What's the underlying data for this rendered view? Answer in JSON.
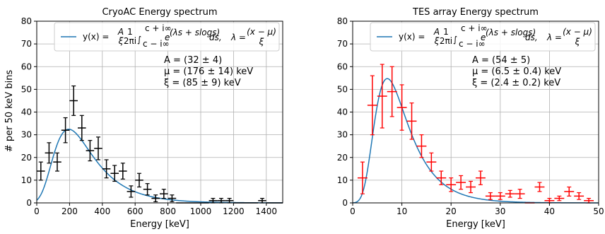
{
  "chart_data": [
    {
      "type": "scatter",
      "title": "CryoAC Energy spectrum",
      "xlabel": "Energy [keV]",
      "ylabel": "# per 50 keV bins",
      "xlim": [
        0,
        1500
      ],
      "ylim": [
        0,
        80
      ],
      "xticks": [
        0,
        200,
        400,
        600,
        800,
        1000,
        1200,
        1400
      ],
      "yticks": [
        0,
        10,
        20,
        30,
        40,
        50,
        60,
        70,
        80
      ],
      "grid": true,
      "legend_position": "top-right",
      "legend": {
        "series_label": "y(x) = ",
        "frac_top": "A",
        "frac_bottom": "ξ",
        "frac2_top": "1",
        "frac2_bottom": "2πi",
        "int_upper": "c + i∞",
        "int_lower": "c − i∞",
        "exp_base": "e",
        "exp_power": "(λs + slogs)",
        "ds": "ds,",
        "lambda_lhs": "λ = ",
        "lambda_top": "(x − μ)",
        "lambda_bottom": "ξ"
      },
      "fit_params": [
        "A = (32 ± 4)",
        "μ = (176 ± 14) keV",
        "ξ = (85 ± 9) keV"
      ],
      "fit": {
        "A": 32,
        "mu": 176,
        "xi": 85
      },
      "points_color": "#000000",
      "line_color": "#1f77b4",
      "points": [
        {
          "x": 25,
          "y": 14,
          "yerr": 4
        },
        {
          "x": 75,
          "y": 22,
          "yerr": 4.5
        },
        {
          "x": 125,
          "y": 18,
          "yerr": 4
        },
        {
          "x": 175,
          "y": 32,
          "yerr": 5.5
        },
        {
          "x": 225,
          "y": 45,
          "yerr": 6.5
        },
        {
          "x": 275,
          "y": 33,
          "yerr": 5.5
        },
        {
          "x": 325,
          "y": 23,
          "yerr": 4.5
        },
        {
          "x": 375,
          "y": 24,
          "yerr": 5
        },
        {
          "x": 425,
          "y": 15,
          "yerr": 4
        },
        {
          "x": 475,
          "y": 13,
          "yerr": 3.5
        },
        {
          "x": 525,
          "y": 14,
          "yerr": 3.5
        },
        {
          "x": 575,
          "y": 5,
          "yerr": 2.5
        },
        {
          "x": 625,
          "y": 10,
          "yerr": 3
        },
        {
          "x": 675,
          "y": 6,
          "yerr": 2.5
        },
        {
          "x": 725,
          "y": 2,
          "yerr": 1.5
        },
        {
          "x": 775,
          "y": 4,
          "yerr": 2
        },
        {
          "x": 825,
          "y": 2,
          "yerr": 1.5
        },
        {
          "x": 875,
          "y": 0,
          "yerr": 0
        },
        {
          "x": 925,
          "y": 0,
          "yerr": 0
        },
        {
          "x": 975,
          "y": 0,
          "yerr": 0
        },
        {
          "x": 1025,
          "y": 0,
          "yerr": 0
        },
        {
          "x": 1075,
          "y": 1,
          "yerr": 1
        },
        {
          "x": 1125,
          "y": 1,
          "yerr": 1
        },
        {
          "x": 1175,
          "y": 1,
          "yerr": 1
        },
        {
          "x": 1225,
          "y": 0,
          "yerr": 0
        },
        {
          "x": 1275,
          "y": 0,
          "yerr": 0
        },
        {
          "x": 1325,
          "y": 0,
          "yerr": 0
        },
        {
          "x": 1375,
          "y": 1,
          "yerr": 1
        },
        {
          "x": 1425,
          "y": 0,
          "yerr": 0
        },
        {
          "x": 1475,
          "y": 0,
          "yerr": 0
        }
      ]
    },
    {
      "type": "scatter",
      "title": "TES array Energy spectrum",
      "xlabel": "Energy [keV]",
      "ylabel": "",
      "xlim": [
        0,
        50
      ],
      "ylim": [
        0,
        80
      ],
      "xticks": [
        0,
        10,
        20,
        30,
        40,
        50
      ],
      "yticks": [
        0,
        10,
        20,
        30,
        40,
        50,
        60,
        70,
        80
      ],
      "grid": true,
      "legend_position": "top-right",
      "legend": {
        "series_label": "y(x) = ",
        "frac_top": "A",
        "frac_bottom": "ξ",
        "frac2_top": "1",
        "frac2_bottom": "2πi",
        "int_upper": "c + i∞",
        "int_lower": "c − i∞",
        "exp_base": "e",
        "exp_power": "(λs + slogs)",
        "ds": "ds,",
        "lambda_lhs": "λ = ",
        "lambda_top": "(x − μ)",
        "lambda_bottom": "ξ"
      },
      "fit_params": [
        "A = (54 ± 5)",
        "μ = (6.5 ± 0.4) keV",
        "ξ = (2.4 ± 0.2) keV"
      ],
      "fit": {
        "A": 54,
        "mu": 6.5,
        "xi": 2.4
      },
      "points_color": "#ff0000",
      "line_color": "#1f77b4",
      "points": [
        {
          "x": 2,
          "y": 11,
          "yerr": 7
        },
        {
          "x": 4,
          "y": 43,
          "yerr": 13
        },
        {
          "x": 6,
          "y": 47,
          "yerr": 14
        },
        {
          "x": 8,
          "y": 49,
          "yerr": 11
        },
        {
          "x": 10,
          "y": 42,
          "yerr": 10
        },
        {
          "x": 12,
          "y": 36,
          "yerr": 8
        },
        {
          "x": 14,
          "y": 25,
          "yerr": 5
        },
        {
          "x": 16,
          "y": 18,
          "yerr": 4
        },
        {
          "x": 18,
          "y": 11,
          "yerr": 3
        },
        {
          "x": 20,
          "y": 8,
          "yerr": 3
        },
        {
          "x": 22,
          "y": 9,
          "yerr": 3
        },
        {
          "x": 24,
          "y": 7,
          "yerr": 2.5
        },
        {
          "x": 26,
          "y": 11,
          "yerr": 3
        },
        {
          "x": 28,
          "y": 3,
          "yerr": 1.5
        },
        {
          "x": 30,
          "y": 3,
          "yerr": 1.5
        },
        {
          "x": 32,
          "y": 4,
          "yerr": 1.5
        },
        {
          "x": 34,
          "y": 4,
          "yerr": 2
        },
        {
          "x": 36,
          "y": 0,
          "yerr": 0
        },
        {
          "x": 38,
          "y": 7,
          "yerr": 2
        },
        {
          "x": 40,
          "y": 1,
          "yerr": 1
        },
        {
          "x": 42,
          "y": 2,
          "yerr": 1
        },
        {
          "x": 44,
          "y": 5,
          "yerr": 2
        },
        {
          "x": 46,
          "y": 3,
          "yerr": 1.5
        },
        {
          "x": 48,
          "y": 1,
          "yerr": 1
        }
      ]
    }
  ]
}
